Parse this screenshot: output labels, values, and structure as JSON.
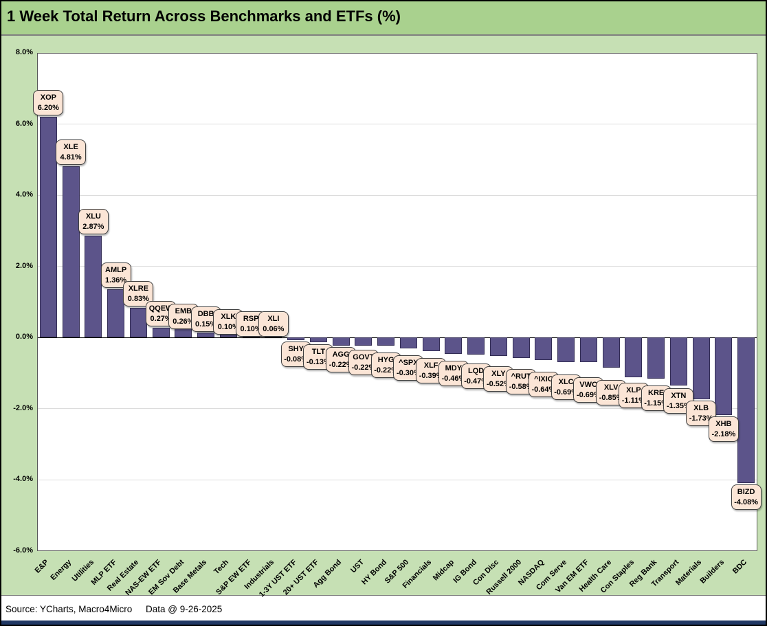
{
  "chart_data": {
    "type": "bar",
    "title": "1 Week Total Return Across Benchmarks and ETFs (%)",
    "xlabel": "",
    "ylabel": "",
    "ylim": [
      -6.0,
      8.0
    ],
    "grid": true,
    "legend": false,
    "ytick_values": [
      8,
      6,
      4,
      2,
      0,
      -2,
      -4,
      -6
    ],
    "ytick_labels": [
      "8.0%",
      "6.0%",
      "4.0%",
      "2.0%",
      "0.0%",
      "-2.0%",
      "-4.0%",
      "-6.0%"
    ],
    "bars": [
      {
        "category": "E&P",
        "ticker": "XOP",
        "value": 6.2,
        "label": "6.20%"
      },
      {
        "category": "Energy",
        "ticker": "XLE",
        "value": 4.81,
        "label": "4.81%"
      },
      {
        "category": "Utilities",
        "ticker": "XLU",
        "value": 2.87,
        "label": "2.87%"
      },
      {
        "category": "MLP ETF",
        "ticker": "AMLP",
        "value": 1.36,
        "label": "1.36%"
      },
      {
        "category": "Real Estate",
        "ticker": "XLRE",
        "value": 0.83,
        "label": "0.83%"
      },
      {
        "category": "NAS-EW ETF",
        "ticker": "QQEW",
        "value": 0.27,
        "label": "0.27%"
      },
      {
        "category": "EM Sov Debt",
        "ticker": "EMB",
        "value": 0.26,
        "label": "0.26%"
      },
      {
        "category": "Base Metals",
        "ticker": "DBB",
        "value": 0.15,
        "label": "0.15%"
      },
      {
        "category": "Tech",
        "ticker": "XLK",
        "value": 0.1,
        "label": "0.10%"
      },
      {
        "category": "S&P EW ETF",
        "ticker": "RSP",
        "value": 0.1,
        "label": "0.10%"
      },
      {
        "category": "Industrials",
        "ticker": "XLI",
        "value": 0.06,
        "label": "0.06%"
      },
      {
        "category": "1-3Y UST ETF",
        "ticker": "SHY",
        "value": -0.08,
        "label": "-0.08%"
      },
      {
        "category": "20+ UST ETF",
        "ticker": "TLT",
        "value": -0.13,
        "label": "-0.13%"
      },
      {
        "category": "Agg Bond",
        "ticker": "AGG",
        "value": -0.22,
        "label": "-0.22%"
      },
      {
        "category": "UST",
        "ticker": "GOVT",
        "value": -0.22,
        "label": "-0.22%"
      },
      {
        "category": "HY Bond",
        "ticker": "HYG",
        "value": -0.22,
        "label": "-0.22%"
      },
      {
        "category": "S&P 500",
        "ticker": "^SPX",
        "value": -0.3,
        "label": "-0.30%"
      },
      {
        "category": "Financials",
        "ticker": "XLF",
        "value": -0.39,
        "label": "-0.39%"
      },
      {
        "category": "Midcap",
        "ticker": "MDY",
        "value": -0.46,
        "label": "-0.46%"
      },
      {
        "category": "IG Bond",
        "ticker": "LQD",
        "value": -0.47,
        "label": "-0.47%"
      },
      {
        "category": "Con Disc",
        "ticker": "XLY",
        "value": -0.52,
        "label": "-0.52%"
      },
      {
        "category": "Russell 2000",
        "ticker": "^RUT",
        "value": -0.58,
        "label": "-0.58%"
      },
      {
        "category": "NASDAQ",
        "ticker": "^IXIC",
        "value": -0.64,
        "label": "-0.64%"
      },
      {
        "category": "Com Serve",
        "ticker": "XLC",
        "value": -0.69,
        "label": "-0.69%"
      },
      {
        "category": "Van EM ETF",
        "ticker": "VWO",
        "value": -0.69,
        "label": "-0.69%"
      },
      {
        "category": "Health Care",
        "ticker": "XLV",
        "value": -0.85,
        "label": "-0.85%"
      },
      {
        "category": "Con Staples",
        "ticker": "XLP",
        "value": -1.11,
        "label": "-1.11%"
      },
      {
        "category": "Reg Bank",
        "ticker": "KRE",
        "value": -1.15,
        "label": "-1.15%"
      },
      {
        "category": "Transport",
        "ticker": "XTN",
        "value": -1.35,
        "label": "-1.35%"
      },
      {
        "category": "Materials",
        "ticker": "XLB",
        "value": -1.73,
        "label": "-1.73%"
      },
      {
        "category": "Builders",
        "ticker": "XHB",
        "value": -2.18,
        "label": "-2.18%"
      },
      {
        "category": "BDC",
        "ticker": "BIZD",
        "value": -4.08,
        "label": "-4.08%"
      }
    ]
  },
  "footer": {
    "source": "Source: YCharts, Macro4Micro",
    "data_date": "Data @ 9-26-2025"
  },
  "colors": {
    "title_band_bg": "#A9D18E",
    "background": "#C6E0B4",
    "plot_bg": "#FFFFFF",
    "bar_fill": "#5C548A",
    "bar_border": "#332D55",
    "callout_bg": "#FBE5D6",
    "callout_border": "#3F3F3F",
    "gridline": "#DCDCDC",
    "zero_line": "#000000",
    "bottom_bar": "#203864"
  }
}
